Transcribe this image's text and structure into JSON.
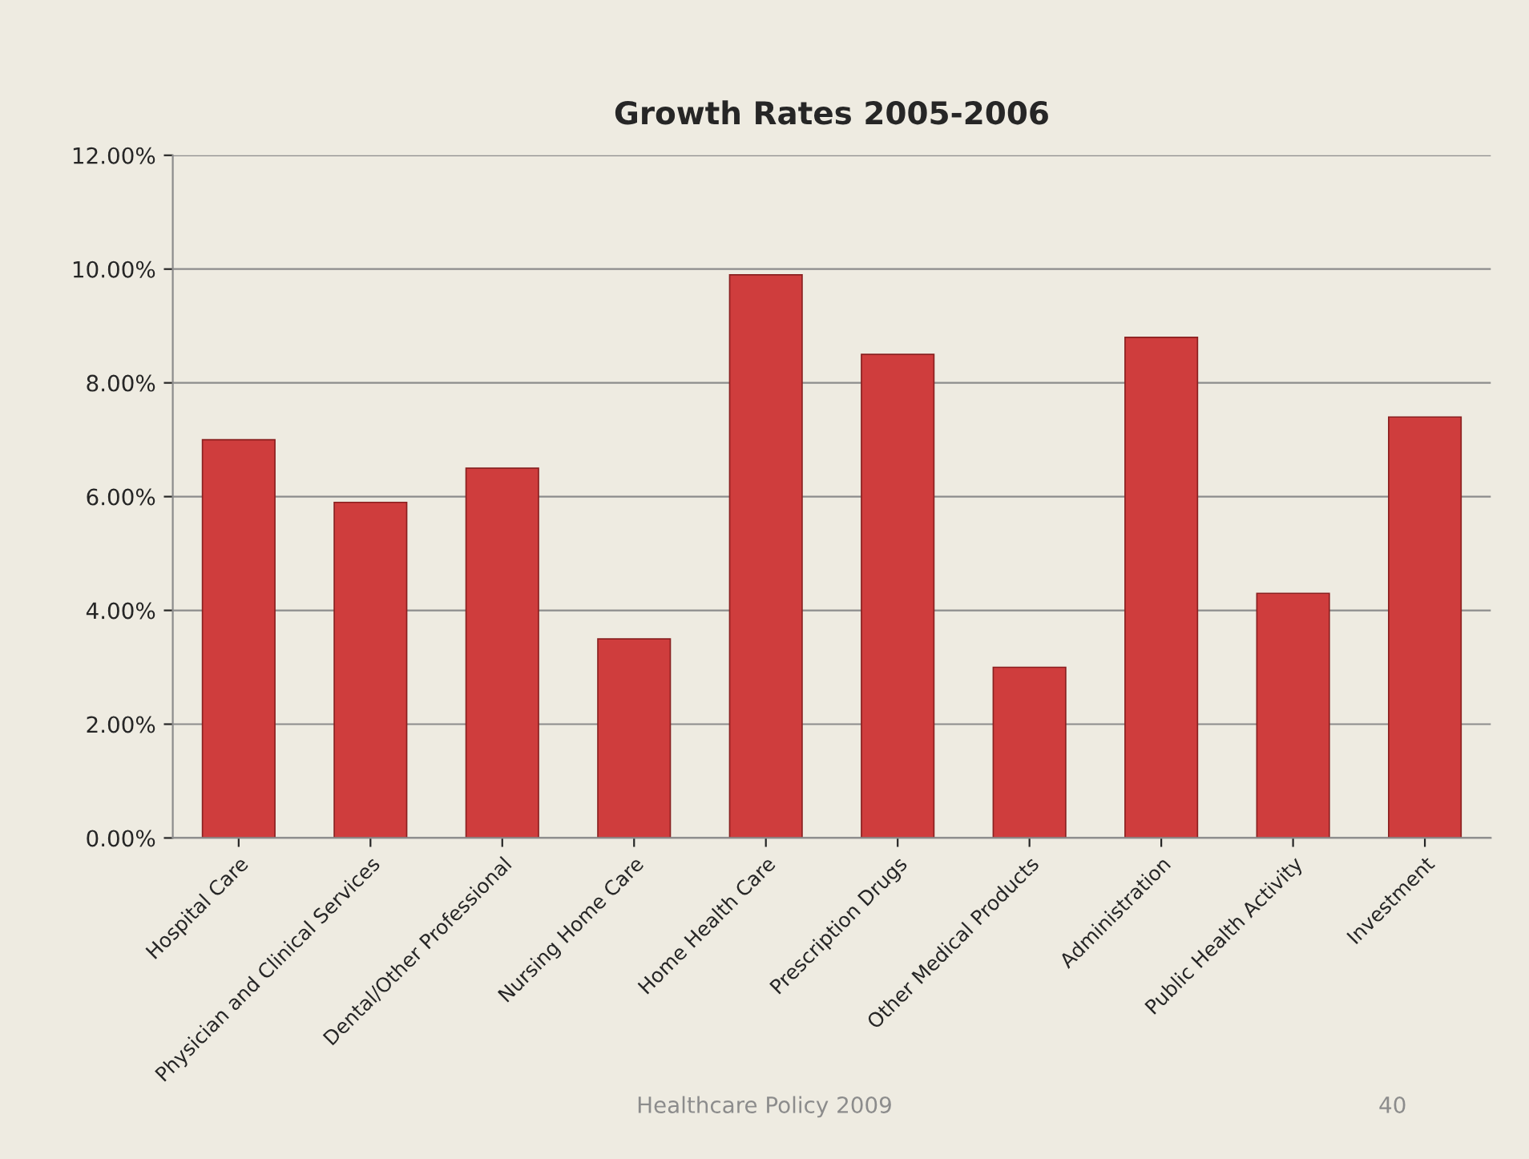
{
  "chart_data": {
    "type": "bar",
    "title": "Growth Rates 2005-2006",
    "categories": [
      "Hospital Care",
      "Physician and Clinical Services",
      "Dental/Other Professional",
      "Nursing Home Care",
      "Home Health Care",
      "Prescription Drugs",
      "Other Medical Products",
      "Administration",
      "Public Health Activity",
      "Investment"
    ],
    "values": [
      7.0,
      5.9,
      6.5,
      3.5,
      9.9,
      8.5,
      3.0,
      8.8,
      4.3,
      7.4
    ],
    "color": "#cf3d3d",
    "ylim": [
      0,
      12
    ],
    "yticks": [
      {
        "value": 0,
        "label": "0.00%"
      },
      {
        "value": 2,
        "label": "2.00%"
      },
      {
        "value": 4,
        "label": "4.00%"
      },
      {
        "value": 6,
        "label": "6.00%"
      },
      {
        "value": 8,
        "label": "8.00%"
      },
      {
        "value": 10,
        "label": "10.00%"
      },
      {
        "value": 12,
        "label": "12.00%"
      }
    ],
    "grid": "y",
    "annotations": [
      "Healthcare Policy 2009",
      "40"
    ]
  }
}
